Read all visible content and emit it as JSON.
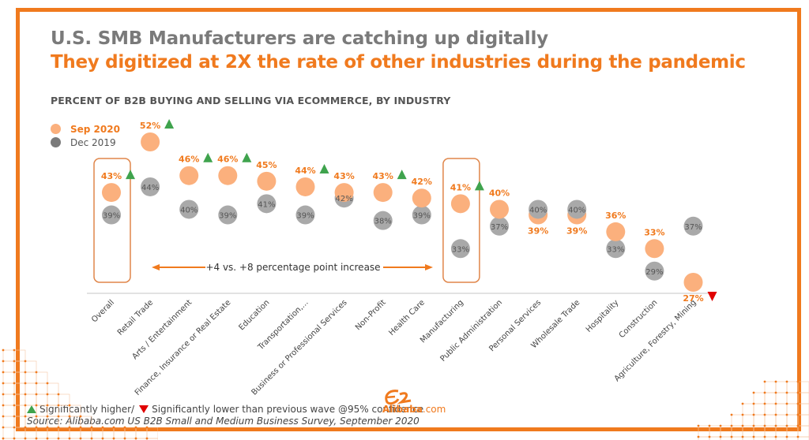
{
  "header": {
    "title": "U.S. SMB Manufacturers are catching up digitally",
    "subtitle": "They digitized at 2X the rate of other industries during the pandemic",
    "chart_heading": "PERCENT OF B2B BUYING AND SELLING VIA ECOMMERCE, BY INDUSTRY"
  },
  "colors": {
    "accent": "#f07a1e",
    "sep2020": "#fbb07d",
    "dec2019": "#a9a9a9",
    "up": "#3fa34d",
    "down": "#e00000"
  },
  "legend": {
    "sep2020": "Sep 2020",
    "dec2019": "Dec 2019"
  },
  "annotation": {
    "text": "+4 vs. +8 percentage point increase",
    "highlighted": [
      "Overall",
      "Manufacturing"
    ]
  },
  "footnote": {
    "higher": "Significantly higher/",
    "lower": "Significantly lower than previous wave @95% confidence",
    "source": "Source: Alibaba.com US B2B Small and Medium Business Survey, September 2020"
  },
  "logo": {
    "brand": "Alibaba",
    "suffix": ".com"
  },
  "chart_data": {
    "type": "scatter",
    "title": "PERCENT OF B2B BUYING AND SELLING VIA ECOMMERCE, BY INDUSTRY",
    "xlabel": "",
    "ylabel": "",
    "ylim": [
      25,
      54
    ],
    "grid": false,
    "legend_position": "top-left",
    "categories": [
      "Overall",
      "Retail Trade",
      "Arts / Entertainment",
      "Finance, Insurance or Real Estate",
      "Education",
      "Transportation,...",
      "Business or Professional Services",
      "Non-Profit",
      "Health Care",
      "Manufacturing",
      "Public Administration",
      "Personal Services",
      "Wholesale Trade",
      "Hospitality",
      "Construction",
      "Agriculture, Forestry, Mining"
    ],
    "series": [
      {
        "name": "Sep 2020",
        "values": [
          43,
          52,
          46,
          46,
          45,
          44,
          43,
          43,
          42,
          41,
          40,
          39,
          39,
          36,
          33,
          27
        ]
      },
      {
        "name": "Dec 2019",
        "values": [
          39,
          44,
          40,
          39,
          41,
          39,
          42,
          38,
          39,
          33,
          37,
          40,
          40,
          33,
          29,
          37
        ]
      }
    ],
    "significance": [
      "up",
      "up",
      "up",
      "up",
      "none",
      "up",
      "none",
      "up",
      "none",
      "up",
      "none",
      "none",
      "none",
      "none",
      "none",
      "down"
    ]
  }
}
